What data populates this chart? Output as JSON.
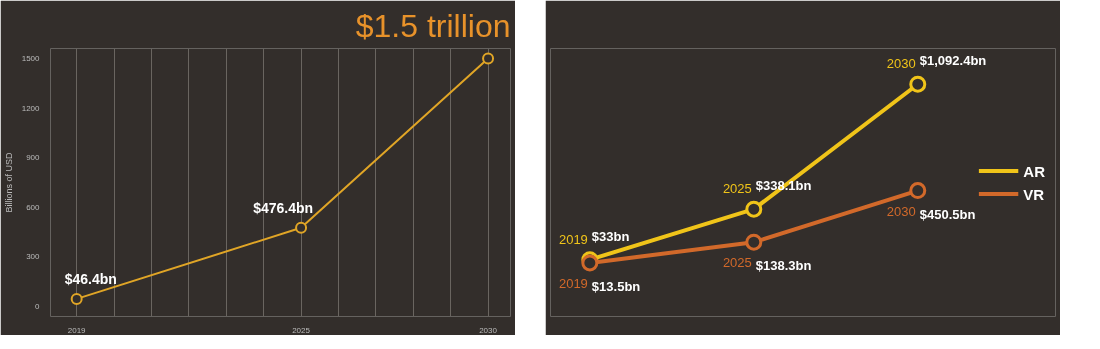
{
  "chart_data": [
    {
      "type": "line",
      "title": "$1.5 trillion",
      "ylabel": "Billions of USD",
      "x": [
        2019,
        2025,
        2030
      ],
      "series": [
        {
          "color": "#e0a526",
          "values": [
            46.4,
            476.4,
            1500
          ],
          "value_labels": [
            "$46.4bn",
            "$476.4bn",
            null
          ]
        }
      ],
      "xlim": [
        2018.3,
        2030.6
      ],
      "ylim": [
        -60,
        1560
      ],
      "xticks": [
        2019,
        {
          "value": 2020,
          "label": null
        },
        {
          "value": 2021,
          "label": null
        },
        {
          "value": 2022,
          "label": null
        },
        {
          "value": 2023,
          "label": null
        },
        {
          "value": 2024,
          "label": null
        },
        2025,
        {
          "value": 2026,
          "label": null
        },
        {
          "value": 2027,
          "label": null
        },
        {
          "value": 2028,
          "label": null
        },
        {
          "value": 2029,
          "label": null
        },
        2030
      ],
      "yticks": [
        0,
        300,
        600,
        900,
        1200,
        1500
      ],
      "grid": "x",
      "marker": "circle",
      "legend": false
    },
    {
      "type": "line",
      "categories": [
        null,
        null,
        null
      ],
      "annotations": [
        "2019",
        "2025",
        "2030",
        "2019",
        "2025",
        "2030"
      ],
      "series": [
        {
          "name": "AR",
          "color": "#f0c419",
          "values": [
            33,
            338.1,
            1092.4
          ],
          "value_labels": [
            "$33bn",
            "$338.1bn",
            "$1,092.4bn"
          ]
        },
        {
          "name": "VR",
          "color": "#d2692a",
          "values": [
            13.5,
            138.3,
            450.5
          ],
          "value_labels": [
            "$13.5bn",
            "$138.3bn",
            "$450.5bn"
          ]
        }
      ],
      "tick_labels": false,
      "grid": false,
      "marker": "circle",
      "legend": "right"
    }
  ]
}
